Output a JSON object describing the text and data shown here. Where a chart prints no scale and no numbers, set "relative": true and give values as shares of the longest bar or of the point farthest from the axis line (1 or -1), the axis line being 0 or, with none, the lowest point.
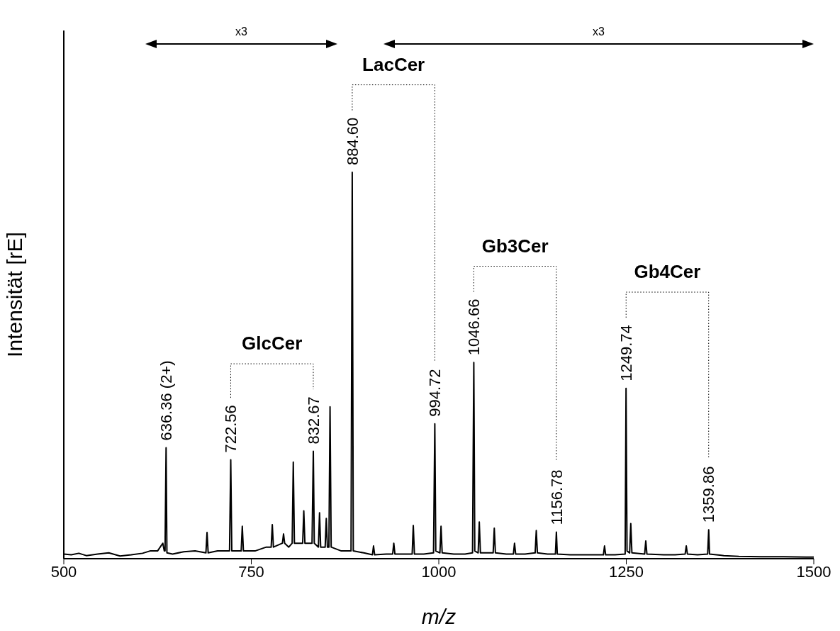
{
  "chart_data": {
    "type": "line",
    "relative": true,
    "xlabel": "m/z",
    "ylabel": "Intensität [rE]",
    "xlim": [
      500,
      1500
    ],
    "xticks": [
      500,
      750,
      1000,
      1250,
      1500
    ],
    "x": [
      500,
      510,
      520,
      530,
      545,
      560,
      575,
      590,
      605,
      615,
      625,
      632,
      634,
      635,
      636.4,
      637.5,
      645,
      660,
      675,
      689.5,
      691,
      692.5,
      705,
      715,
      721,
      722.6,
      724,
      736.5,
      738,
      739.5,
      755,
      770,
      776.5,
      778,
      779.5,
      791.5,
      793,
      794.5,
      800,
      804.5,
      806,
      807.5,
      813,
      818.5,
      820,
      821.5,
      827,
      831,
      832.7,
      834,
      839.5,
      841,
      842.5,
      848.5,
      850,
      851.5,
      853.5,
      855,
      856.5,
      870,
      883,
      884.6,
      886,
      900,
      911.5,
      913,
      914.5,
      930,
      938.5,
      940,
      941.5,
      955,
      964.5,
      966,
      967.5,
      980,
      993,
      994.7,
      996,
      1001.5,
      1003,
      1004.5,
      1020,
      1035,
      1045,
      1046.7,
      1048,
      1052.5,
      1054,
      1055.5,
      1072.5,
      1074,
      1075.5,
      1090,
      1099.5,
      1101,
      1102.5,
      1115,
      1128.5,
      1130,
      1131.5,
      1145,
      1155.5,
      1156.8,
      1158,
      1175,
      1200,
      1219.5,
      1221,
      1222.5,
      1235,
      1248.5,
      1249.7,
      1251,
      1254.5,
      1256,
      1257.5,
      1274.5,
      1276,
      1277.5,
      1300,
      1315,
      1328.5,
      1330,
      1331.5,
      1345,
      1358.5,
      1359.9,
      1361,
      1380,
      1400,
      1430,
      1460,
      1490,
      1500
    ],
    "series": [
      {
        "color": "#000000",
        "values": [
          0.012,
          0.01,
          0.014,
          0.008,
          0.012,
          0.015,
          0.007,
          0.01,
          0.014,
          0.02,
          0.02,
          0.04,
          0.02,
          0.02,
          0.287,
          0.015,
          0.012,
          0.018,
          0.02,
          0.015,
          0.068,
          0.015,
          0.02,
          0.02,
          0.02,
          0.256,
          0.02,
          0.02,
          0.084,
          0.02,
          0.02,
          0.03,
          0.03,
          0.088,
          0.03,
          0.04,
          0.064,
          0.04,
          0.03,
          0.04,
          0.25,
          0.04,
          0.04,
          0.04,
          0.124,
          0.04,
          0.04,
          0.04,
          0.278,
          0.04,
          0.03,
          0.119,
          0.03,
          0.03,
          0.104,
          0.03,
          0.03,
          0.393,
          0.03,
          0.02,
          0.02,
          1,
          0.02,
          0.015,
          0.01,
          0.033,
          0.01,
          0.012,
          0.012,
          0.04,
          0.012,
          0.012,
          0.012,
          0.086,
          0.012,
          0.012,
          0.015,
          0.349,
          0.02,
          0.015,
          0.084,
          0.015,
          0.012,
          0.012,
          0.015,
          0.508,
          0.02,
          0.015,
          0.095,
          0.015,
          0.015,
          0.079,
          0.015,
          0.012,
          0.012,
          0.04,
          0.012,
          0.012,
          0.015,
          0.073,
          0.015,
          0.012,
          0.012,
          0.069,
          0.012,
          0.01,
          0.01,
          0.01,
          0.033,
          0.01,
          0.01,
          0.012,
          0.441,
          0.02,
          0.015,
          0.091,
          0.015,
          0.012,
          0.046,
          0.012,
          0.01,
          0.01,
          0.012,
          0.033,
          0.012,
          0.01,
          0.012,
          0.075,
          0.012,
          0.008,
          0.006,
          0.005,
          0.005,
          0.004,
          0.004
        ]
      }
    ],
    "annotations": [
      {
        "text": "636.36 (2+)",
        "x": 636.36,
        "y": 0.287
      },
      "GlcCer",
      {
        "text": "722.56",
        "x": 722.56,
        "y": 0.256
      },
      {
        "text": "832.67",
        "x": 832.67,
        "y": 0.278
      },
      "LacCer",
      {
        "text": "884.60",
        "x": 884.6,
        "y": 1
      },
      {
        "text": "994.72",
        "x": 994.72,
        "y": 0.349
      },
      "Gb3Cer",
      {
        "text": "1046.66",
        "x": 1046.66,
        "y": 0.508
      },
      {
        "text": "1156.78",
        "x": 1156.78,
        "y": 0.069
      },
      "Gb4Cer",
      {
        "text": "1249.74",
        "x": 1249.74,
        "y": 0.441
      },
      {
        "text": "1359.86",
        "x": 1359.86,
        "y": 0.075
      },
      "x3",
      "x3"
    ]
  }
}
